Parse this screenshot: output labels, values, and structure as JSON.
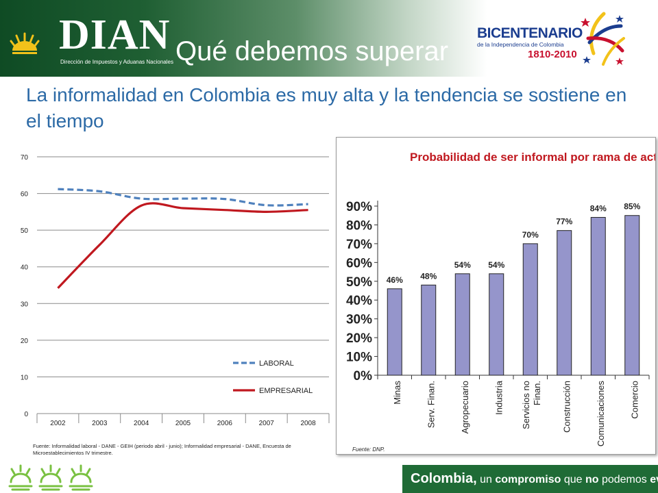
{
  "header": {
    "logo_text": "DIAN",
    "logo_subtitle": "Dirección de Impuestos y Aduanas Nacionales",
    "slide_title": "Qué debemos superar",
    "bicentenario_title": "BICENTENARIO",
    "bicentenario_subtitle": "de la Independencia de Colombia",
    "bicentenario_years": "1810-2010"
  },
  "subtitle": "La informalidad en Colombia es muy alta y la tendencia se sostiene en el tiempo",
  "chart_data": [
    {
      "type": "line",
      "title": "",
      "xlabel": "",
      "ylabel": "",
      "categories": [
        "2002",
        "2003",
        "2004",
        "2005",
        "2006",
        "2007",
        "2008"
      ],
      "yticks": [
        "0",
        "10",
        "20",
        "30",
        "40",
        "50",
        "60",
        "70"
      ],
      "ylim": [
        0,
        70
      ],
      "grid": true,
      "legend_position": "bottom-right",
      "series": [
        {
          "name": "LABORAL",
          "values": [
            61.2,
            60.6,
            58.6,
            58.6,
            58.5,
            56.8,
            57.1
          ],
          "color": "#4f81bd",
          "style": "dashed"
        },
        {
          "name": "EMPRESARIAL",
          "values": [
            34.2,
            46.0,
            56.7,
            56.0,
            55.5,
            55.0,
            55.5
          ],
          "color": "#c0181f",
          "style": "solid"
        }
      ],
      "source": "Fuente: Informalidad laboral - DANE - GEIH (periodo abril - junio); Informalidad empresarial - DANE, Encuesta de Microestablecimientos IV trimestre."
    },
    {
      "type": "bar",
      "title": "Probabilidad de ser informal por rama de actividad",
      "xlabel": "",
      "ylabel": "",
      "categories": [
        "Minas",
        "Serv. Finan.",
        "Agropecuario",
        "Industria",
        "Servicios no Finan.",
        "Construcción",
        "Comunicaciones",
        "Comercio"
      ],
      "values": [
        46,
        48,
        54,
        54,
        70,
        77,
        84,
        85
      ],
      "data_labels": [
        "46%",
        "48%",
        "54%",
        "54%",
        "70%",
        "77%",
        "84%",
        "85%"
      ],
      "yticks": [
        "0%",
        "10%",
        "20%",
        "30%",
        "40%",
        "50%",
        "60%",
        "70%",
        "80%",
        "90%"
      ],
      "ylim": [
        0,
        90
      ],
      "grid": false,
      "bar_color": "#9595cb",
      "title_color": "#c0181f",
      "source": "Fuente: DNP."
    }
  ],
  "footer": {
    "brand": "Colombia,",
    "part1": " un ",
    "word_compromiso": "compromiso",
    "part2": " que ",
    "word_no": "no",
    "part3": " podemos ",
    "word_evadir": "evadir."
  },
  "colors": {
    "header_green": "#0f4b24",
    "subtitle_blue": "#2c6aa6",
    "footer_green": "#1f6b36"
  }
}
